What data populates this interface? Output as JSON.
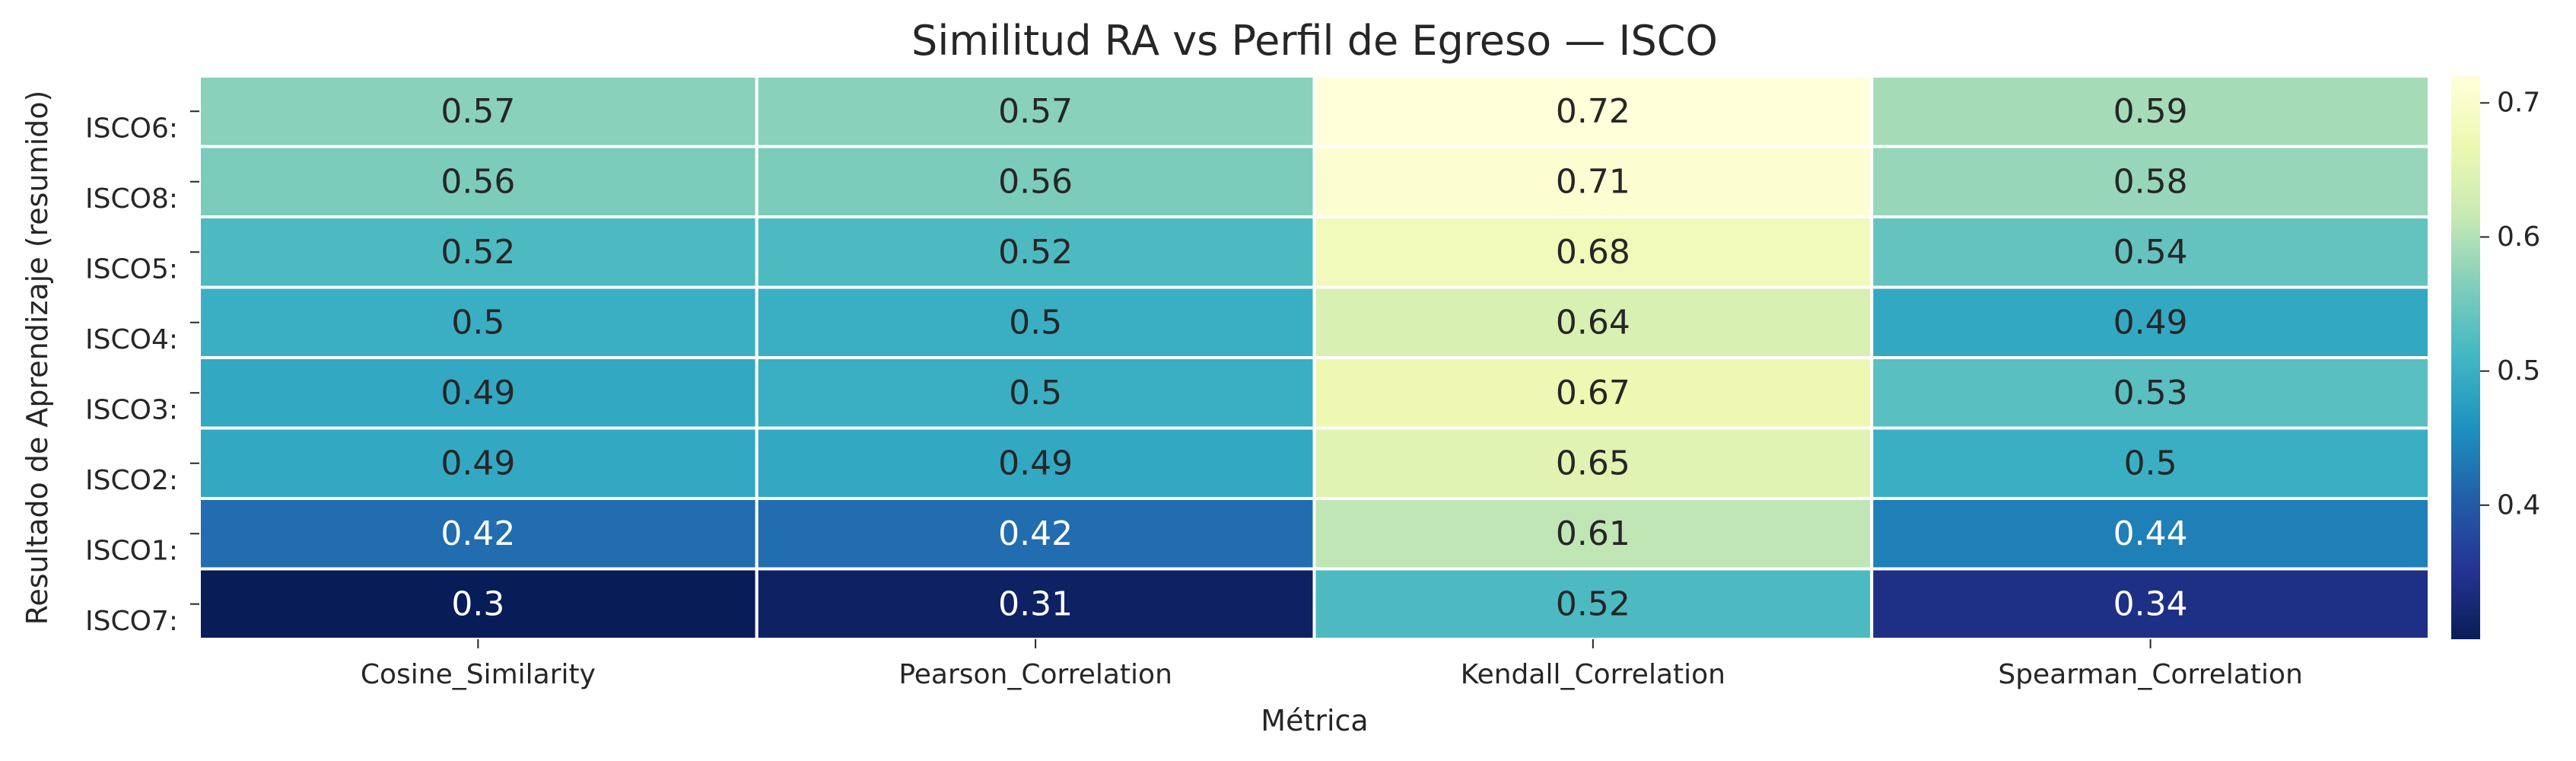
{
  "chart_data": {
    "type": "heatmap",
    "title": "Similitud RA vs Perfil de Egreso — ISCO",
    "xlabel": "Métrica",
    "ylabel": "Resultado de Aprendizaje (resumido)",
    "columns": [
      "Cosine_Similarity",
      "Pearson_Correlation",
      "Kendall_Correlation",
      "Spearman_Correlation"
    ],
    "rows": [
      "ISCO6:",
      "ISCO8:",
      "ISCO5:",
      "ISCO4:",
      "ISCO3:",
      "ISCO2:",
      "ISCO1:",
      "ISCO7:"
    ],
    "values": [
      [
        0.57,
        0.57,
        0.72,
        0.59
      ],
      [
        0.56,
        0.56,
        0.71,
        0.58
      ],
      [
        0.52,
        0.52,
        0.68,
        0.54
      ],
      [
        0.5,
        0.5,
        0.64,
        0.49
      ],
      [
        0.49,
        0.5,
        0.67,
        0.53
      ],
      [
        0.49,
        0.49,
        0.65,
        0.5
      ],
      [
        0.42,
        0.42,
        0.61,
        0.44
      ],
      [
        0.3,
        0.31,
        0.52,
        0.34
      ]
    ],
    "value_labels": [
      [
        "0.57",
        "0.57",
        "0.72",
        "0.59"
      ],
      [
        "0.56",
        "0.56",
        "0.71",
        "0.58"
      ],
      [
        "0.52",
        "0.52",
        "0.68",
        "0.54"
      ],
      [
        "0.5",
        "0.5",
        "0.64",
        "0.49"
      ],
      [
        "0.49",
        "0.5",
        "0.67",
        "0.53"
      ],
      [
        "0.49",
        "0.49",
        "0.65",
        "0.5"
      ],
      [
        "0.42",
        "0.42",
        "0.61",
        "0.44"
      ],
      [
        "0.3",
        "0.31",
        "0.52",
        "0.34"
      ]
    ],
    "colormap": "YlGnBu",
    "colorbar": {
      "range": [
        0.3,
        0.72
      ],
      "ticks": [
        0.4,
        0.5,
        0.6,
        0.7
      ],
      "tick_labels": [
        "0.4",
        "0.5",
        "0.6",
        "0.7"
      ]
    }
  }
}
